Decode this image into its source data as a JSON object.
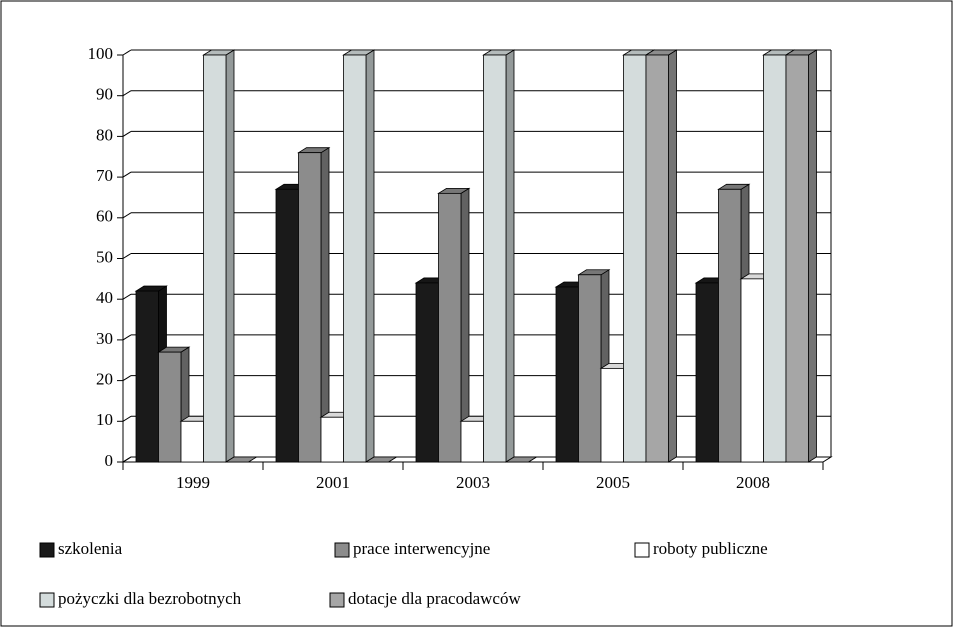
{
  "chart_data": {
    "type": "bar",
    "categories": [
      "1999",
      "2001",
      "2003",
      "2005",
      "2008"
    ],
    "series": [
      {
        "name": "szkolenia",
        "color": "#1a1a1a",
        "values": [
          42,
          67,
          44,
          43,
          44
        ]
      },
      {
        "name": "prace interwencyjne",
        "color": "#8c8c8c",
        "values": [
          27,
          76,
          66,
          46,
          67
        ]
      },
      {
        "name": "roboty publiczne",
        "color": "#ffffff",
        "values": [
          10,
          11,
          10,
          23,
          45
        ]
      },
      {
        "name": "pożyczki dla bezrobotnych",
        "color": "#d4dcdc",
        "values": [
          100,
          100,
          100,
          100,
          100
        ]
      },
      {
        "name": "dotacje dla pracodawców",
        "color": "#a6a6a6",
        "values": [
          0,
          0,
          0,
          100,
          100
        ]
      }
    ],
    "ylim": [
      0,
      100
    ],
    "yticks": [
      0,
      10,
      20,
      30,
      40,
      50,
      60,
      70,
      80,
      90,
      100
    ],
    "grid": true
  }
}
